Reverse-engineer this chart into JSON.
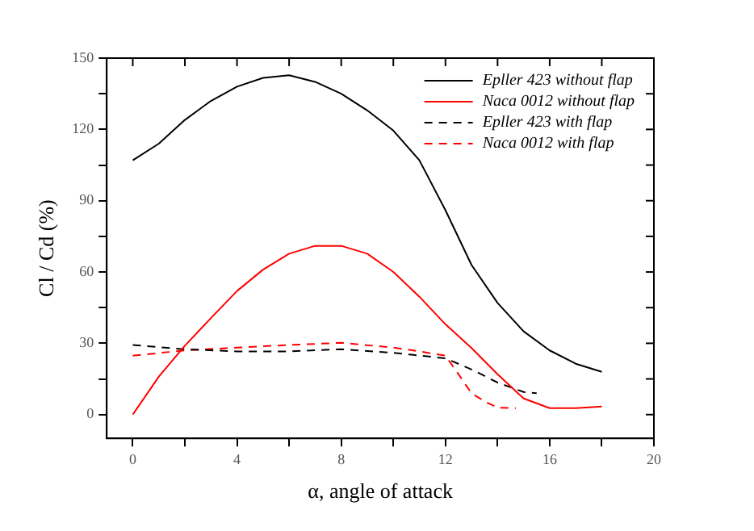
{
  "chart_data": {
    "type": "line",
    "xlabel": "α, angle of attack",
    "ylabel": "Cl / Cd (%)",
    "xlim": [
      -1,
      20
    ],
    "ylim": [
      -10,
      150
    ],
    "xticks": [
      0,
      {
        "value": 2,
        "label": null
      },
      4,
      {
        "value": 6,
        "label": null
      },
      8,
      {
        "value": 10,
        "label": null
      },
      12,
      {
        "value": 14,
        "label": null
      },
      16,
      {
        "value": 18,
        "label": null
      },
      20
    ],
    "yticks": [
      0,
      {
        "value": 15,
        "label": null
      },
      30,
      {
        "value": 45,
        "label": null
      },
      60,
      {
        "value": 75,
        "label": null
      },
      90,
      {
        "value": 105,
        "label": null
      },
      120,
      {
        "value": 135,
        "label": null
      },
      150
    ],
    "grid": false,
    "legend": "top right",
    "marker": "none",
    "series": [
      {
        "name": "Epller 423 without flap",
        "color": "#000000",
        "line_style": "solid",
        "x": [
          0,
          1,
          2,
          3,
          4,
          5,
          6,
          7,
          8,
          9,
          10,
          11,
          12,
          13,
          14,
          15,
          16,
          17,
          18
        ],
        "values": [
          107,
          114,
          124,
          132,
          138,
          141.7,
          142.8,
          140,
          135,
          128,
          119.5,
          107,
          86,
          63,
          47,
          35,
          27,
          21.4,
          18
        ]
      },
      {
        "name": "Naca 0012 without flap",
        "color": "#ff0000",
        "line_style": "solid",
        "x": [
          0,
          1,
          2,
          3,
          4,
          5,
          6,
          7,
          8,
          9,
          10,
          11,
          12,
          13,
          14,
          15,
          16,
          17,
          18
        ],
        "values": [
          0,
          16,
          29,
          40.6,
          52,
          61,
          67.7,
          71,
          71,
          67.7,
          60,
          49.6,
          38,
          28,
          17,
          6.8,
          2.7,
          2.7,
          3.4
        ]
      },
      {
        "name": "Epller 423 with flap",
        "color": "#000000",
        "line_style": "dashed",
        "x": [
          0,
          2,
          4,
          6,
          8,
          10,
          12,
          13,
          14,
          15,
          15.5
        ],
        "values": [
          29.3,
          27.5,
          26.6,
          26.6,
          27.5,
          26,
          23.7,
          19,
          13.5,
          9.5,
          9
        ]
      },
      {
        "name": "Naca 0012 with flap",
        "color": "#ff0000",
        "line_style": "dashed",
        "x": [
          0,
          2,
          4,
          6,
          8,
          10,
          11,
          12,
          12.5,
          13,
          13.5,
          14,
          14.7
        ],
        "values": [
          24.8,
          27,
          28.2,
          29.3,
          30.2,
          28.2,
          26.6,
          24.8,
          17,
          9,
          5.6,
          2.9,
          2.7
        ]
      }
    ]
  }
}
